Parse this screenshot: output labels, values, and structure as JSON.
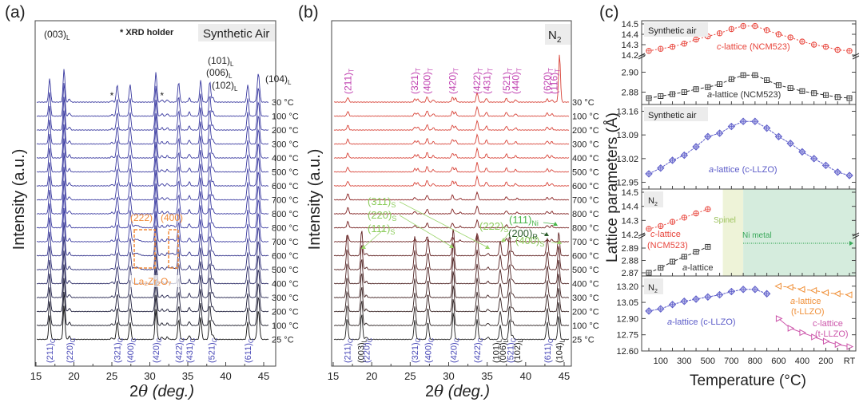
{
  "chart_data": [
    {
      "panel": "(a)",
      "type": "line",
      "title": "Synthetic Air",
      "note": "* XRD holder",
      "xlabel": "2θ (deg.)",
      "ylabel": "Intensity (a.u.)",
      "xlim": [
        15,
        45
      ],
      "xticks": [
        15,
        20,
        25,
        30,
        35,
        40,
        45
      ],
      "traces": [
        "30 °C",
        "100 °C",
        "200 °C",
        "300 °C",
        "400 °C",
        "500 °C",
        "600 °C",
        "700 °C",
        "800 °C",
        "800 °C",
        "700 °C",
        "600 °C",
        "500 °C",
        "400 °C",
        "300 °C",
        "200 °C",
        "100 °C",
        "25 °C"
      ],
      "top_peak_labels": [
        {
          "label": "(003)",
          "sub": "L",
          "x": 18.7
        },
        {
          "label": "(101)",
          "sub": "L",
          "x": 36.7
        },
        {
          "label": "(006)",
          "sub": "L",
          "x": 37.8
        },
        {
          "label": "(102)",
          "sub": "L",
          "x": 38.3
        },
        {
          "label": "(104)",
          "sub": "L",
          "x": 44.4
        }
      ],
      "holder_marks": [
        25.0,
        31.6
      ],
      "bottom_peak_labels": [
        {
          "label": "(211)",
          "sub": "C",
          "x": 16.8
        },
        {
          "label": "(220)",
          "sub": "C",
          "x": 19.4
        },
        {
          "label": "(321)",
          "sub": "C",
          "x": 25.7
        },
        {
          "label": "(400)",
          "sub": "C",
          "x": 27.4
        },
        {
          "label": "(420)",
          "sub": "C",
          "x": 30.8
        },
        {
          "label": "(422)",
          "sub": "C",
          "x": 33.8
        },
        {
          "label": "(431)",
          "sub": "C",
          "x": 35.2
        },
        {
          "label": "(521)",
          "sub": "C",
          "x": 38.1
        },
        {
          "label": "(611)",
          "sub": "C",
          "x": 42.9
        }
      ],
      "annotations": {
        "a222": "(222)",
        "a400": "(400)",
        "lzo": "La₂Zr₂O₇"
      }
    },
    {
      "panel": "(b)",
      "type": "line",
      "title": "N₂",
      "xlabel": "2θ (deg.)",
      "ylabel": "Intensity (a.u.)",
      "xlim": [
        15,
        45
      ],
      "xticks": [
        15,
        20,
        25,
        30,
        35,
        40,
        45
      ],
      "traces": [
        "30 °C",
        "100 °C",
        "200 °C",
        "300 °C",
        "400 °C",
        "500 °C",
        "600 °C",
        "700 °C",
        "800 °C",
        "800 °C",
        "700 °C",
        "600 °C",
        "500 °C",
        "400 °C",
        "300 °C",
        "200 °C",
        "100 °C",
        "25 °C"
      ],
      "top_peak_labels": [
        {
          "label": "(211)",
          "sub": "T",
          "x": 16.9
        },
        {
          "label": "(321)",
          "sub": "T",
          "x": 25.6
        },
        {
          "label": "(400)",
          "sub": "T",
          "x": 27.2
        },
        {
          "label": "(420)",
          "sub": "T",
          "x": 30.5
        },
        {
          "label": "(422)",
          "sub": "T",
          "x": 33.7
        },
        {
          "label": "(431)",
          "sub": "T",
          "x": 35.0
        },
        {
          "label": "(521)",
          "sub": "T",
          "x": 37.5
        },
        {
          "label": "(440)",
          "sub": "T",
          "x": 38.7
        },
        {
          "label": "(620)",
          "sub": "T",
          "x": 42.8
        },
        {
          "label": "(116)",
          "sub": "T",
          "x": 43.7
        }
      ],
      "phase_labels": [
        {
          "label": "(311)",
          "sub": "S"
        },
        {
          "label": "(220)",
          "sub": "S"
        },
        {
          "label": "(111)",
          "sub": "S"
        },
        {
          "label": "(222)",
          "sub": "S"
        },
        {
          "label": "(400)",
          "sub": "S"
        },
        {
          "label": "(111)",
          "sub": "Ni"
        },
        {
          "label": "(200)",
          "sub": "R"
        }
      ],
      "bottom_peak_labels": [
        {
          "label": "(211)",
          "sub": "C",
          "x": 16.8,
          "color": "blue"
        },
        {
          "label": "(003)",
          "sub": "L",
          "x": 18.6,
          "color": "black"
        },
        {
          "label": "(220)",
          "sub": "C",
          "x": 19.3,
          "color": "blue"
        },
        {
          "label": "(321)",
          "sub": "C",
          "x": 25.6,
          "color": "blue"
        },
        {
          "label": "(400)",
          "sub": "C",
          "x": 27.3,
          "color": "blue"
        },
        {
          "label": "(420)",
          "sub": "C",
          "x": 30.6,
          "color": "blue"
        },
        {
          "label": "(422)",
          "sub": "C",
          "x": 33.7,
          "color": "blue"
        },
        {
          "label": "(101)",
          "sub": "L",
          "x": 36.1,
          "color": "black"
        },
        {
          "label": "(006)",
          "sub": "L",
          "x": 37.0,
          "color": "black"
        },
        {
          "label": "(521)",
          "sub": "C",
          "x": 38.0,
          "color": "blue"
        },
        {
          "label": "(102)",
          "sub": "L",
          "x": 38.9,
          "color": "black"
        },
        {
          "label": "(611)",
          "sub": "C",
          "x": 42.8,
          "color": "blue"
        },
        {
          "label": "(104)",
          "sub": "L",
          "x": 44.3,
          "color": "black"
        }
      ]
    },
    {
      "panel": "(c)",
      "type": "line",
      "xlabel": "Temperature (°C)",
      "ylabel": "Lattice parameters (Å)",
      "xticks": [
        "100",
        "300",
        "500",
        "700",
        "800",
        "600",
        "400",
        "200",
        "RT"
      ],
      "subplots": [
        {
          "label": "Synthetic air",
          "yticks_top": [
            14.2,
            14.3,
            14.4,
            14.5
          ],
          "yticks_bottom": [
            2.88,
            2.9
          ],
          "series": [
            {
              "name": "c-lattice (NCM523)",
              "color": "#e8453c",
              "marker": "circle-plus",
              "values": [
                14.24,
                14.26,
                14.28,
                14.31,
                14.35,
                14.38,
                14.41,
                14.45,
                14.48,
                14.48,
                14.44,
                14.4,
                14.37,
                14.33,
                14.3,
                14.28,
                14.25,
                14.24
              ]
            },
            {
              "name": "a-lattice (NCM523)",
              "color": "#333333",
              "marker": "square-plus",
              "values": [
                2.874,
                2.876,
                2.878,
                2.88,
                2.883,
                2.885,
                2.888,
                2.893,
                2.897,
                2.897,
                2.892,
                2.887,
                2.884,
                2.881,
                2.879,
                2.877,
                2.875,
                2.874
              ]
            }
          ]
        },
        {
          "label": "Synthetic air",
          "yticks": [
            12.95,
            13.02,
            13.09,
            13.16
          ],
          "series": [
            {
              "name": "a-lattice (c-LLZO)",
              "color": "#5b5bc8",
              "marker": "diamond-plus",
              "values": [
                12.975,
                12.992,
                13.015,
                13.03,
                13.055,
                13.085,
                13.095,
                13.115,
                13.13,
                13.13,
                13.11,
                13.085,
                13.065,
                13.04,
                13.02,
                13.0,
                12.98,
                12.97
              ]
            }
          ]
        },
        {
          "label": "N₂",
          "yticks_top": [
            14.2,
            14.3,
            14.4,
            14.5
          ],
          "yticks_bottom": [
            2.87,
            2.88,
            2.89
          ],
          "regions": [
            {
              "name": "Spinel",
              "color": "#eef3d8"
            },
            {
              "name": "Ni metal",
              "color": "#d5ecdd"
            }
          ],
          "series": [
            {
              "name": "c-lattice (NCM523)",
              "color": "#e8453c",
              "marker": "circle-plus",
              "values": [
                14.24,
                14.26,
                14.29,
                14.32,
                14.35,
                14.38
              ]
            },
            {
              "name": "a-lattice",
              "color": "#333333",
              "marker": "square-plus",
              "values": [
                2.87,
                2.874,
                2.879,
                2.883,
                2.887,
                2.891
              ]
            }
          ]
        },
        {
          "label": "N₂",
          "yticks": [
            12.6,
            12.75,
            12.9,
            13.05,
            13.2
          ],
          "series": [
            {
              "name": "a-lattice (c-LLZO)",
              "color": "#5b5bc8",
              "marker": "diamond-plus",
              "values": [
                12.97,
                12.99,
                13.03,
                13.06,
                13.08,
                13.1,
                13.12,
                13.15,
                13.17,
                13.17,
                13.13
              ]
            },
            {
              "name": "a-lattice (t-LLZO)",
              "color": "#f0913a",
              "marker": "triangle-left",
              "values": [
                13.2,
                13.19,
                13.17,
                13.16,
                13.14,
                13.13,
                13.12
              ]
            },
            {
              "name": "c-lattice (t-LLZO)",
              "color": "#cc55aa",
              "marker": "triangle-right",
              "values": [
                12.9,
                12.81,
                12.77,
                12.73,
                12.69,
                12.66,
                12.64
              ]
            }
          ]
        }
      ]
    }
  ],
  "labels": {
    "panel_a": "(a)",
    "panel_b": "(b)",
    "panel_c": "(c)",
    "holder_note": "* XRD holder",
    "synthetic_air": "Synthetic Air",
    "n2": "N",
    "n2_sub": "2",
    "intensity": "Intensity (a.u.)",
    "two_theta_num": "2",
    "two_theta_sym": "θ",
    "two_theta_unit": " (deg.)",
    "lattice_params": "Lattice parameters (Å)",
    "temperature": "Temperature (°C)",
    "c_syn_air": "Synthetic air",
    "c_n2": "N",
    "c1_c_lbl_it": "c",
    "c1_c_lbl": "-lattice (NCM523)",
    "c1_a_lbl_it": "a",
    "c1_a_lbl": "-lattice (NCM523)",
    "c2_lbl_it": "a",
    "c2_lbl": "-lattice (c-LLZO)",
    "c3_c_lbl_it": "c",
    "c3_c_lbl1": "-lattice",
    "c3_c_lbl2": "(NCM523)",
    "c3_a_lbl_it": "a",
    "c3_a_lbl": "-lattice",
    "spinel": "Spinel",
    "ni_metal": "Ni metal",
    "c4_a_lbl_it": "a",
    "c4_a_lbl": "-lattice (c-LLZO)",
    "c4_ta_lbl_it": "a",
    "c4_ta_lbl1": "-lattice",
    "c4_ta_lbl2": "(t-LLZO)",
    "c4_tc_lbl1": "c-lattice",
    "c4_tc_lbl2": "(t-LLZO)"
  }
}
